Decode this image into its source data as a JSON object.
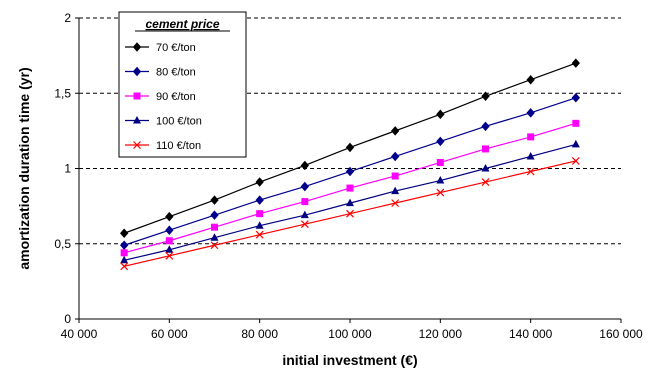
{
  "chart_data": {
    "type": "line",
    "xlabel": "initial investment (€)",
    "ylabel": "amortization duration time (yr)",
    "xlim": [
      40000,
      160000
    ],
    "ylim": [
      0,
      2
    ],
    "x_ticks": [
      "40 000",
      "60 000",
      "80 000",
      "100 000",
      "120 000",
      "140 000",
      "160 000"
    ],
    "y_ticks": [
      "0",
      "0,5",
      "1",
      "1,5",
      "2"
    ],
    "grid": "horizontal dashed",
    "legend_title": "cement price",
    "legend_position": "top-left",
    "x": [
      50000,
      60000,
      70000,
      80000,
      90000,
      100000,
      110000,
      120000,
      130000,
      140000,
      150000
    ],
    "series": [
      {
        "name": "70 €/ton",
        "color": "#000000",
        "marker": "diamond",
        "values": [
          0.57,
          0.68,
          0.79,
          0.91,
          1.02,
          1.14,
          1.25,
          1.36,
          1.48,
          1.59,
          1.7
        ]
      },
      {
        "name": "80 €/ton",
        "color": "#00008b",
        "marker": "diamond",
        "values": [
          0.49,
          0.59,
          0.69,
          0.79,
          0.88,
          0.98,
          1.08,
          1.18,
          1.28,
          1.37,
          1.47
        ]
      },
      {
        "name": "90 €/ton",
        "color": "#ff00ff",
        "marker": "square",
        "values": [
          0.44,
          0.52,
          0.61,
          0.7,
          0.78,
          0.87,
          0.95,
          1.04,
          1.13,
          1.21,
          1.3
        ]
      },
      {
        "name": "100 €/ton",
        "color": "#000080",
        "marker": "triangle",
        "values": [
          0.39,
          0.46,
          0.54,
          0.62,
          0.69,
          0.77,
          0.85,
          0.92,
          1.0,
          1.08,
          1.16
        ]
      },
      {
        "name": "110 €/ton",
        "color": "#ff0000",
        "marker": "x",
        "values": [
          0.35,
          0.42,
          0.49,
          0.56,
          0.63,
          0.7,
          0.77,
          0.84,
          0.91,
          0.98,
          1.05
        ]
      }
    ]
  }
}
